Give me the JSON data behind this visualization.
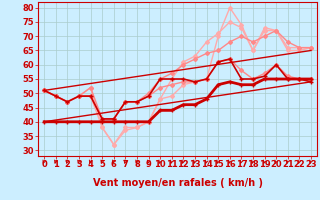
{
  "xlabel": "Vent moyen/en rafales ( km/h )",
  "bg_color": "#cceeff",
  "grid_color": "#aacccc",
  "ylim": [
    28,
    82
  ],
  "yticks": [
    30,
    35,
    40,
    45,
    50,
    55,
    60,
    65,
    70,
    75,
    80
  ],
  "xlim": [
    -0.5,
    23.5
  ],
  "xticks": [
    0,
    1,
    2,
    3,
    4,
    5,
    6,
    7,
    8,
    9,
    10,
    11,
    12,
    13,
    14,
    15,
    16,
    17,
    18,
    19,
    20,
    21,
    22,
    23
  ],
  "series": [
    {
      "x": [
        0,
        1,
        2,
        3,
        4,
        5,
        6,
        7,
        8,
        9,
        10,
        11,
        12,
        13,
        14,
        15,
        16,
        17,
        18,
        19,
        20,
        21,
        22,
        23
      ],
      "y": [
        51,
        49,
        47,
        49,
        52,
        38,
        32,
        38,
        38,
        40,
        48,
        55,
        61,
        63,
        68,
        71,
        75,
        73,
        65,
        72,
        72,
        66,
        66,
        66
      ],
      "color": "#ffaaaa",
      "lw": 1.0,
      "marker": "D",
      "ms": 2.0,
      "zorder": 1
    },
    {
      "x": [
        0,
        1,
        2,
        3,
        4,
        5,
        6,
        7,
        8,
        9,
        10,
        11,
        12,
        13,
        14,
        15,
        16,
        17,
        18,
        19,
        20,
        21,
        22,
        23
      ],
      "y": [
        51,
        49,
        47,
        49,
        49,
        38,
        32,
        37,
        38,
        40,
        48,
        49,
        53,
        54,
        55,
        70,
        80,
        74,
        65,
        73,
        72,
        65,
        65,
        66
      ],
      "color": "#ffaaaa",
      "lw": 1.0,
      "marker": "D",
      "ms": 2.0,
      "zorder": 1
    },
    {
      "x": [
        0,
        1,
        2,
        3,
        4,
        5,
        6,
        7,
        8,
        9,
        10,
        11,
        12,
        13,
        14,
        15,
        16,
        17,
        18,
        19,
        20,
        21,
        22,
        23
      ],
      "y": [
        51,
        49,
        47,
        49,
        52,
        41,
        41,
        47,
        47,
        50,
        55,
        57,
        60,
        62,
        64,
        65,
        68,
        70,
        68,
        70,
        72,
        68,
        66,
        66
      ],
      "color": "#ff8888",
      "lw": 1.0,
      "marker": "D",
      "ms": 2.0,
      "zorder": 2
    },
    {
      "x": [
        0,
        1,
        2,
        3,
        4,
        5,
        6,
        7,
        8,
        9,
        10,
        11,
        12,
        13,
        14,
        15,
        16,
        17,
        18,
        19,
        20,
        21,
        22,
        23
      ],
      "y": [
        51,
        49,
        47,
        49,
        49,
        41,
        41,
        47,
        47,
        49,
        52,
        53,
        54,
        54,
        55,
        61,
        62,
        58,
        55,
        57,
        60,
        56,
        55,
        55
      ],
      "color": "#ff8888",
      "lw": 1.0,
      "marker": "D",
      "ms": 2.0,
      "zorder": 2
    },
    {
      "x": [
        0,
        1,
        2,
        3,
        4,
        5,
        6,
        7,
        8,
        9,
        10,
        11,
        12,
        13,
        14,
        15,
        16,
        17,
        18,
        19,
        20,
        21,
        22,
        23
      ],
      "y": [
        40,
        40,
        40,
        40,
        40,
        40,
        40,
        40,
        40,
        40,
        44,
        44,
        46,
        46,
        48,
        53,
        54,
        53,
        53,
        55,
        55,
        55,
        55,
        55
      ],
      "color": "#cc0000",
      "lw": 2.0,
      "marker": "+",
      "ms": 3.5,
      "zorder": 5
    },
    {
      "x": [
        0,
        1,
        2,
        3,
        4,
        5,
        6,
        7,
        8,
        9,
        10,
        11,
        12,
        13,
        14,
        15,
        16,
        17,
        18,
        19,
        20,
        21,
        22,
        23
      ],
      "y": [
        51,
        49,
        47,
        49,
        49,
        41,
        41,
        47,
        47,
        49,
        55,
        55,
        55,
        54,
        55,
        61,
        62,
        55,
        55,
        56,
        60,
        55,
        55,
        54
      ],
      "color": "#cc0000",
      "lw": 1.2,
      "marker": "+",
      "ms": 3.0,
      "zorder": 4
    },
    {
      "x": [
        0,
        23
      ],
      "y": [
        40,
        54
      ],
      "color": "#cc0000",
      "lw": 1.0,
      "marker": null,
      "ms": 0,
      "zorder": 3
    },
    {
      "x": [
        0,
        23
      ],
      "y": [
        51,
        65
      ],
      "color": "#cc0000",
      "lw": 1.0,
      "marker": null,
      "ms": 0,
      "zorder": 3
    }
  ],
  "arrow_color": "#cc0000",
  "xlabel_color": "#cc0000",
  "xlabel_fontsize": 7,
  "tick_fontsize": 6,
  "tick_color": "#cc0000",
  "label_fontweight": "bold"
}
